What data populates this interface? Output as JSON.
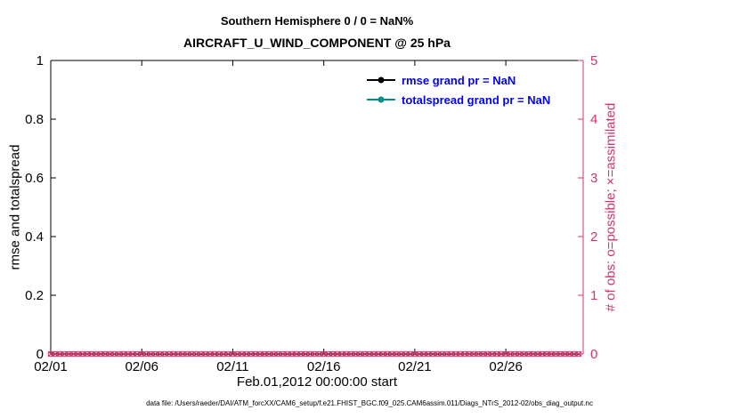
{
  "chart_data": {
    "type": "line",
    "title": "Southern Hemisphere 0 / 0 = NaN%",
    "subtitle": "AIRCRAFT_U_WIND_COMPONENT @ 25 hPa",
    "xlabel": "Feb.01,2012 00:00:00 start",
    "ylabel_left": "rmse and totalspread",
    "ylabel_right": "# of obs: o=possible; ×=assimilated",
    "x_tick_labels": [
      "02/01",
      "02/06",
      "02/11",
      "02/16",
      "02/21",
      "02/26"
    ],
    "x_tick_days": [
      0,
      5,
      10,
      15,
      20,
      25
    ],
    "x_range_days": [
      0,
      29.25
    ],
    "ylim_left": [
      0,
      1
    ],
    "yticks_left": [
      0,
      0.2,
      0.4,
      0.6,
      0.8,
      1
    ],
    "ylim_right": [
      0,
      5
    ],
    "yticks_right": [
      0,
      1,
      2,
      3,
      4,
      5
    ],
    "grid": false,
    "legend_position": "upper-right-inside",
    "series": [
      {
        "name": "rmse grand pr = NaN",
        "color": "#000000",
        "values": []
      },
      {
        "name": "totalspread grand pr = NaN",
        "color": "#00908c",
        "values": []
      }
    ],
    "obs_count_markers": {
      "possible": {
        "marker": "o",
        "y_value": 0,
        "x_start_day": 0,
        "x_end_day": 29,
        "x_step_days": 0.25
      },
      "assimilated": {
        "marker": "x",
        "y_value": 0,
        "x_start_day": 0,
        "x_end_day": 29,
        "x_step_days": 0.25
      }
    }
  },
  "legend": {
    "items": [
      {
        "label": "rmse grand pr = NaN",
        "line_color": "#000000"
      },
      {
        "label": "totalspread grand pr = NaN",
        "line_color": "#00908c"
      }
    ]
  },
  "caption": "data file: /Users/raeder/DAI/ATM_forcXX/CAM6_setup/f.e21.FHIST_BGC.f09_025.CAM6assim.011/Diags_NTrS_2012-02/obs_diag_output.nc",
  "colors": {
    "crimson": "#d6336c",
    "teal": "#00908c",
    "legend_text": "#0000ff",
    "axis": "#000000"
  }
}
